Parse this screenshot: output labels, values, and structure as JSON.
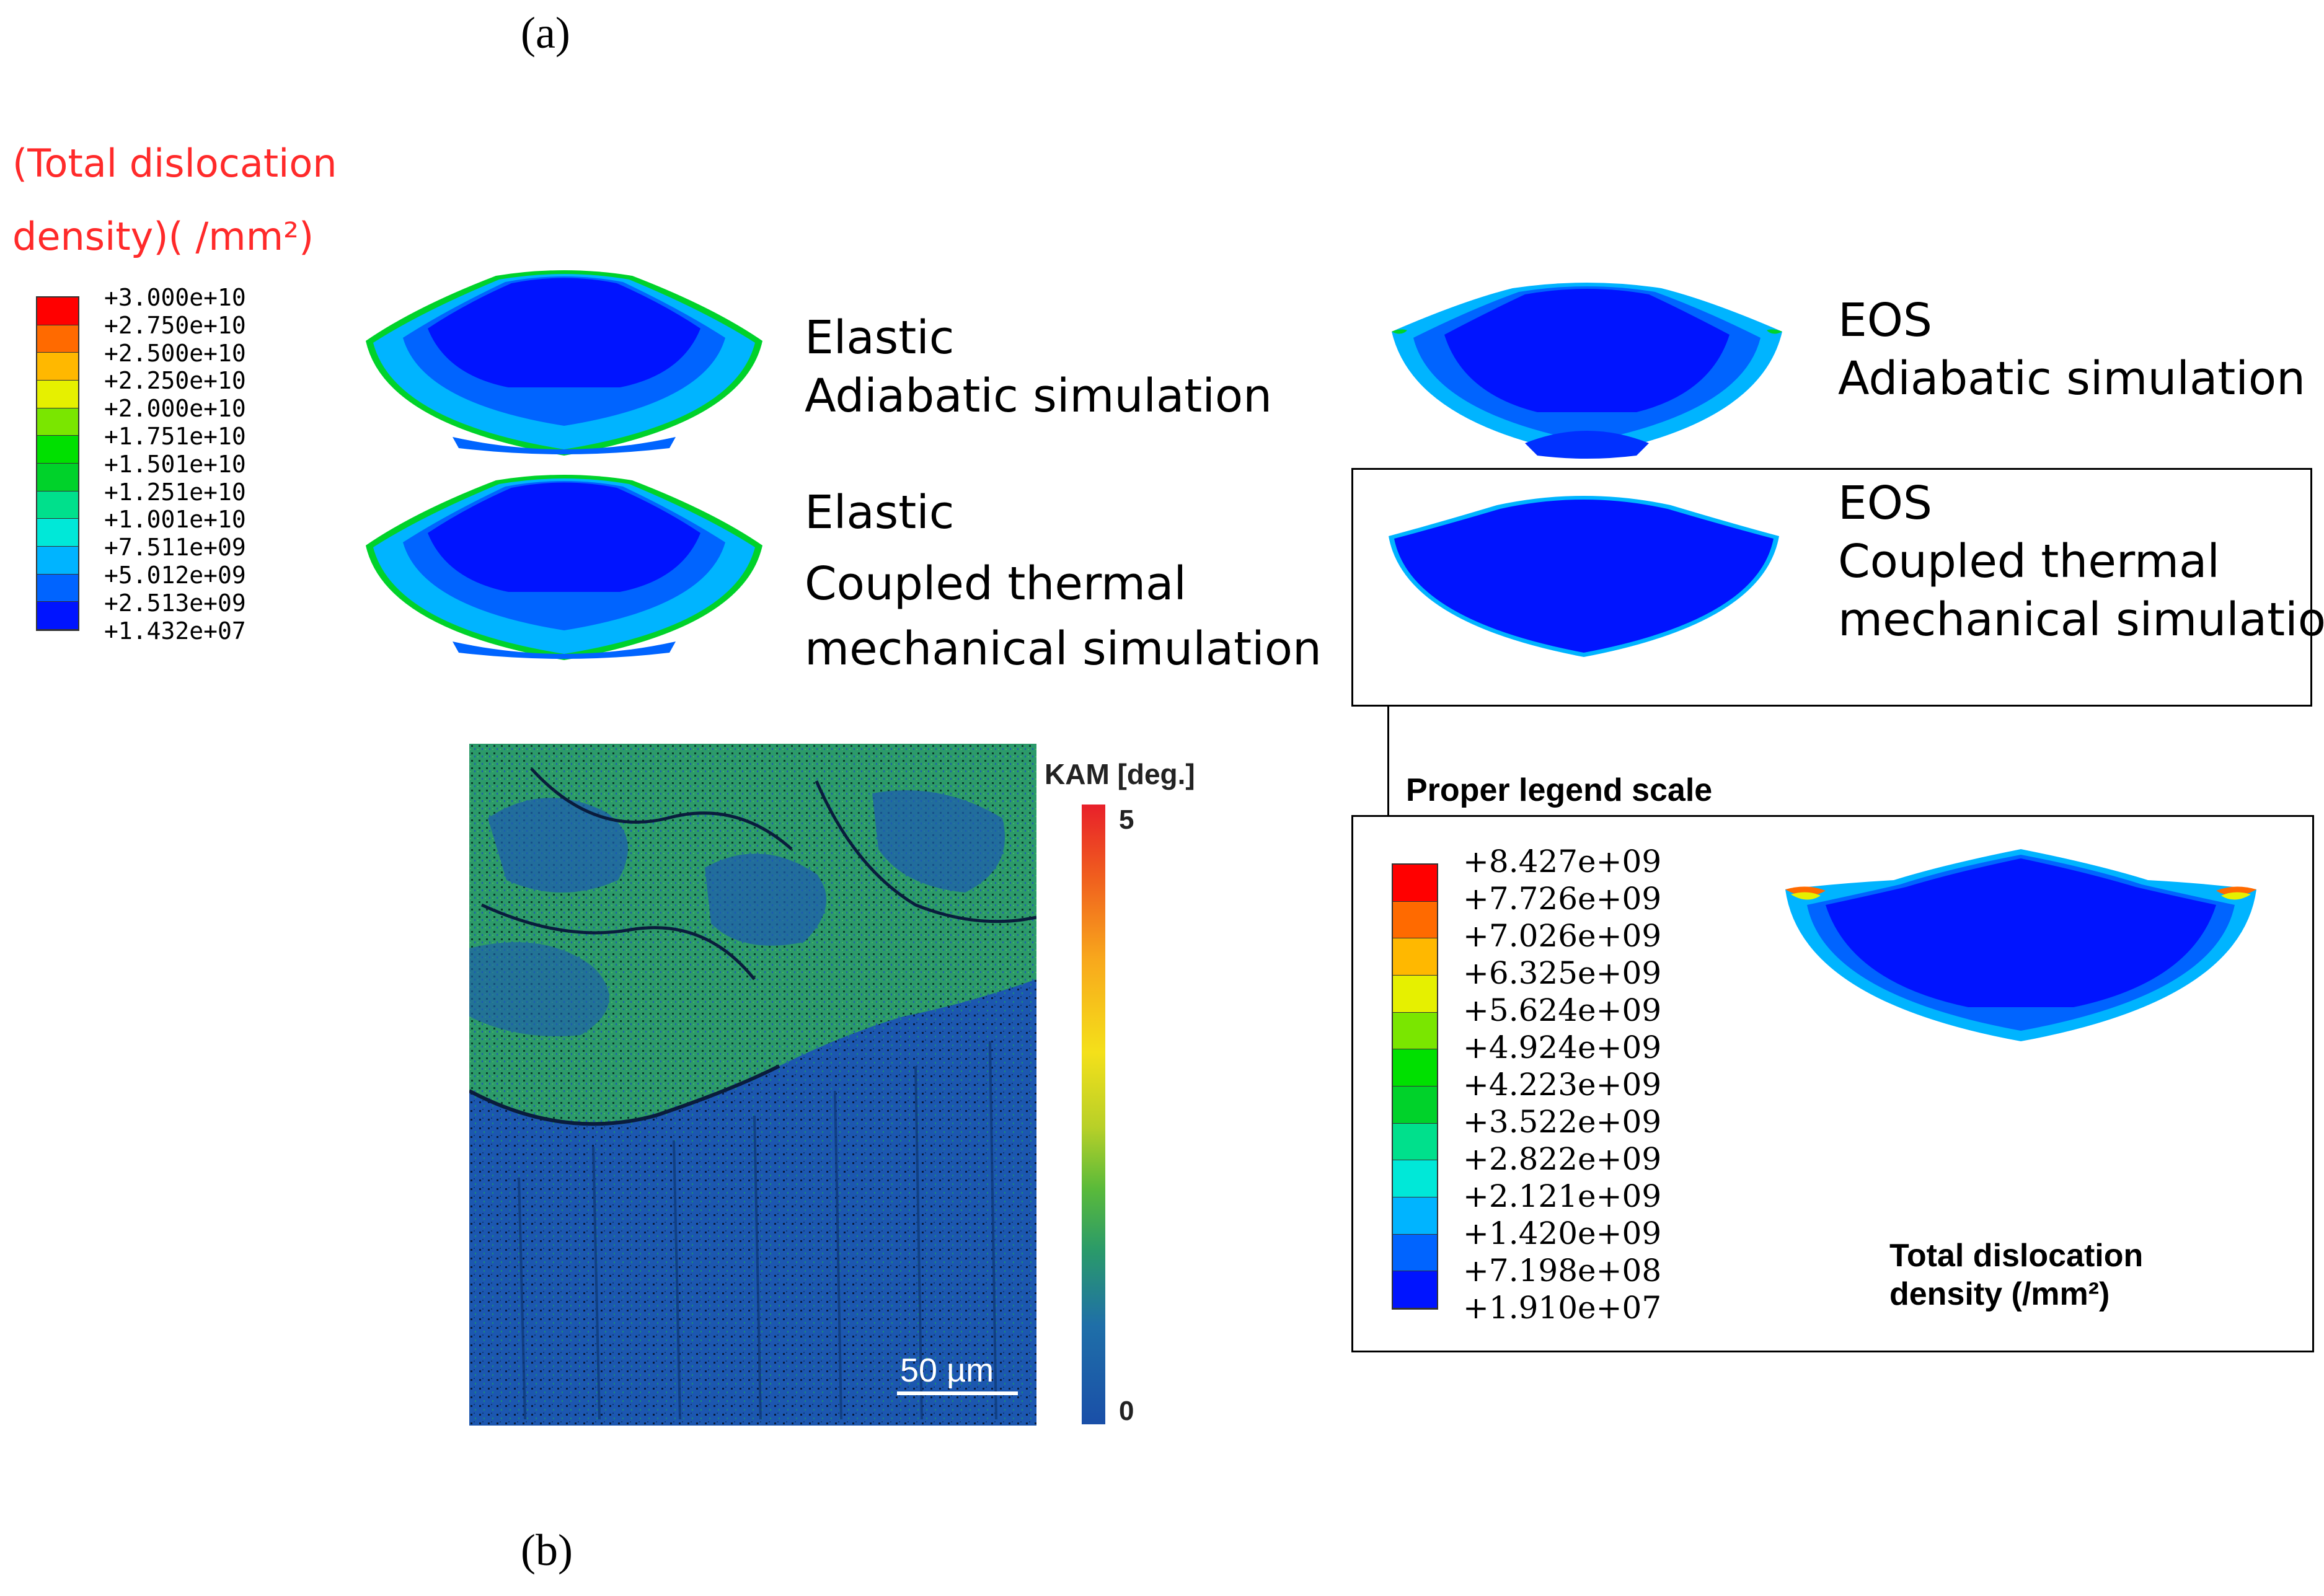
{
  "panel_a_label": "(a)",
  "panel_b_label": "(b)",
  "legend_a": {
    "title_line1": "(Total dislocation",
    "title_line2": "density)( /mm²)",
    "values": [
      "+3.000e+10",
      "+2.750e+10",
      "+2.500e+10",
      "+2.250e+10",
      "+2.000e+10",
      "+1.751e+10",
      "+1.501e+10",
      "+1.251e+10",
      "+1.001e+10",
      "+7.511e+09",
      "+5.012e+09",
      "+2.513e+09",
      "+1.432e+07"
    ],
    "colors": [
      "#ff0000",
      "#ff6a00",
      "#ffb800",
      "#e6f000",
      "#7ae600",
      "#00e000",
      "#00d22a",
      "#00e08c",
      "#00e8d8",
      "#00b4ff",
      "#0064ff",
      "#0014ff"
    ]
  },
  "sims": {
    "elastic_adiabatic": {
      "line1": "Elastic",
      "line2": "Adiabatic simulation"
    },
    "elastic_coupled": {
      "line1": "Elastic",
      "line2": "Coupled thermal",
      "line3": "mechanical simulation"
    },
    "eos_adiabatic": {
      "line1": "EOS",
      "line2": "Adiabatic simulation"
    },
    "eos_coupled": {
      "line1": "EOS",
      "line2": "Coupled thermal",
      "line3": "mechanical simulation"
    }
  },
  "proper_legend_label": "Proper legend scale",
  "legend_b": {
    "values": [
      "+8.427e+09",
      "+7.726e+09",
      "+7.026e+09",
      "+6.325e+09",
      "+5.624e+09",
      "+4.924e+09",
      "+4.223e+09",
      "+3.522e+09",
      "+2.822e+09",
      "+2.121e+09",
      "+1.420e+09",
      "+7.198e+08",
      "+1.910e+07"
    ],
    "colors": [
      "#ff0000",
      "#ff6a00",
      "#ffb800",
      "#e6f000",
      "#7ae600",
      "#00e000",
      "#00d22a",
      "#00e08c",
      "#00e8d8",
      "#00b4ff",
      "#0064ff",
      "#0014ff"
    ],
    "title_line1": "Total dislocation",
    "title_line2": "density (/mm²)"
  },
  "kam": {
    "title": "KAM [deg.]",
    "max_label": "5",
    "min_label": "0",
    "scalebar_label": "50 µm"
  }
}
